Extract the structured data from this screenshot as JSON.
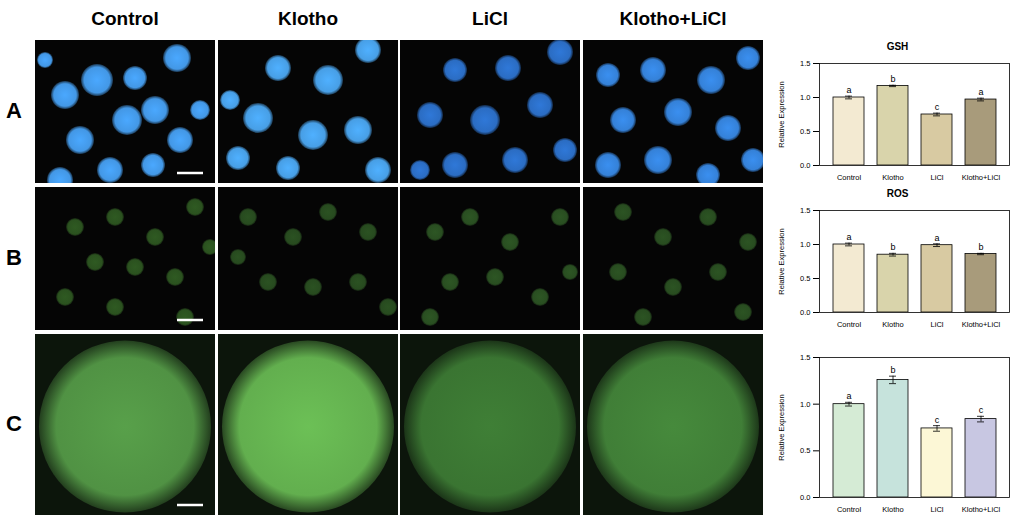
{
  "column_headers": [
    "Control",
    "Klotho",
    "LiCl",
    "Klotho+LiCl"
  ],
  "panel_labels": [
    "A",
    "B",
    "C"
  ],
  "chart_data": [
    {
      "type": "bar",
      "title": "GSH",
      "y_label": "Relative Expression",
      "categories": [
        "Control",
        "Klotho",
        "LiCl",
        "Klotho+LiCl"
      ],
      "values": [
        1.0,
        1.17,
        0.75,
        0.97
      ],
      "errors": [
        0.02,
        0.01,
        0.02,
        0.02
      ],
      "annotations": [
        "a",
        "b",
        "c",
        "a"
      ],
      "colors": [
        "#f3ead2",
        "#d9d4ab",
        "#d8caa2",
        "#a89b7b"
      ],
      "ylim": [
        0,
        1.5
      ],
      "yticks": [
        {
          "value": 0,
          "label": "0.0"
        },
        {
          "value": 0.5,
          "label": "0.5"
        },
        {
          "value": 1,
          "label": "1.0"
        },
        {
          "value": 1.5,
          "label": "1.5"
        }
      ]
    },
    {
      "type": "bar",
      "title": "ROS",
      "y_label": "Relative Expression",
      "categories": [
        "Control",
        "Klotho",
        "LiCl",
        "Klotho+LiCl"
      ],
      "values": [
        1.0,
        0.85,
        0.99,
        0.86
      ],
      "errors": [
        0.02,
        0.02,
        0.02,
        0.01
      ],
      "annotations": [
        "a",
        "b",
        "a",
        "b"
      ],
      "colors": [
        "#f3ead2",
        "#d9d4ab",
        "#d8caa2",
        "#a89b7b"
      ],
      "ylim": [
        0,
        1.5
      ],
      "yticks": [
        {
          "value": 0,
          "label": "0.0"
        },
        {
          "value": 0.5,
          "label": "0.5"
        },
        {
          "value": 1,
          "label": "1.0"
        },
        {
          "value": 1.5,
          "label": "1.5"
        }
      ]
    },
    {
      "type": "bar",
      "y_label": "Relative Expression",
      "categories": [
        "Control",
        "Klotho",
        "LiCl",
        "Klotho+LiCl"
      ],
      "values": [
        1.0,
        1.26,
        0.74,
        0.84
      ],
      "errors": [
        0.02,
        0.04,
        0.03,
        0.03
      ],
      "annotations": [
        "a",
        "b",
        "c",
        "c"
      ],
      "colors": [
        "#d5ebd5",
        "#c6e3dc",
        "#fcf7d6",
        "#c8c7e2"
      ],
      "ylim": [
        0,
        1.5
      ],
      "yticks": [
        {
          "value": 0,
          "label": "0.0"
        },
        {
          "value": 0.5,
          "label": "0.5"
        },
        {
          "value": 1,
          "label": "1.0"
        },
        {
          "value": 1.5,
          "label": "1.5"
        }
      ]
    }
  ]
}
